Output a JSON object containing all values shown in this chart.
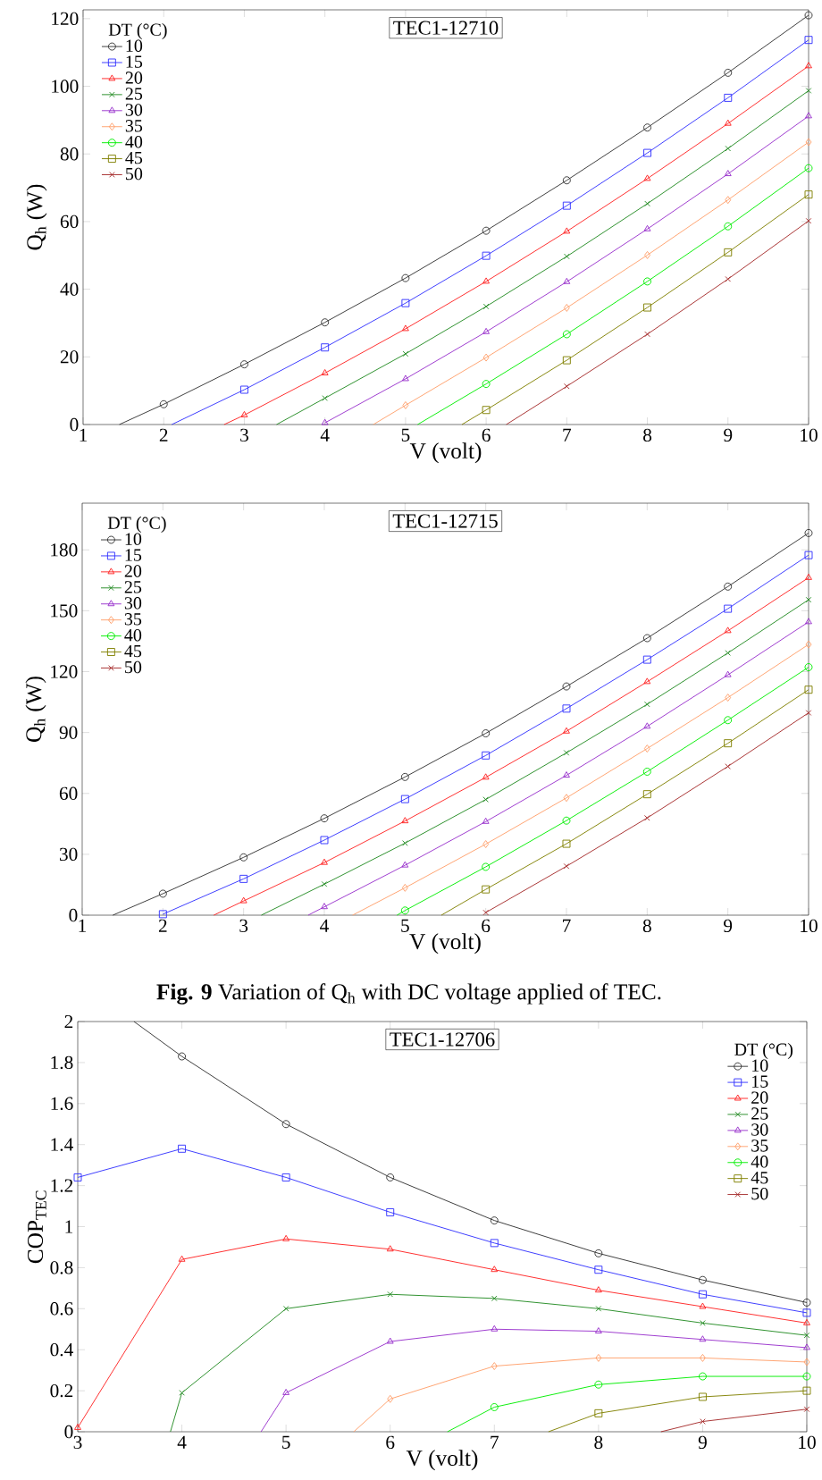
{
  "chart_data": [
    {
      "type": "line",
      "title": "TEC1-12710",
      "xlabel": "V (volt)",
      "ylabel": "Q$_{h}$ (W)",
      "legend_title": "DT (°C)",
      "legend": "top left",
      "xlim": [
        1,
        10
      ],
      "ylim": [
        0,
        122.6
      ],
      "xticks": [
        1,
        2,
        3,
        4,
        5,
        6,
        7,
        8,
        9,
        10
      ],
      "yticks": [
        0,
        20,
        40,
        60,
        80,
        100,
        120
      ],
      "line_style": "solid",
      "series": [
        {
          "name": "10",
          "color": "#333333",
          "marker": "circle",
          "x": [
            1.45,
            2,
            3,
            4,
            5,
            6,
            7,
            8,
            9,
            10
          ],
          "values": [
            0,
            6,
            17.8,
            30.2,
            43.3,
            57.3,
            72.2,
            87.8,
            104,
            121
          ]
        },
        {
          "name": "15",
          "color": "#3333ff",
          "marker": "square",
          "x": [
            2.1,
            3,
            4,
            5,
            6,
            7,
            8,
            9,
            10
          ],
          "values": [
            0,
            10.3,
            22.8,
            35.9,
            49.9,
            64.7,
            80.3,
            96.6,
            113.7
          ]
        },
        {
          "name": "20",
          "color": "#ff2222",
          "marker": "triangle",
          "x": [
            2.75,
            3,
            4,
            5,
            6,
            7,
            8,
            9,
            10
          ],
          "values": [
            0,
            2.8,
            15.2,
            28.3,
            42.3,
            57.1,
            72.7,
            89,
            106
          ]
        },
        {
          "name": "25",
          "color": "#228b22",
          "marker": "cross",
          "x": [
            3.4,
            4,
            5,
            6,
            7,
            8,
            9,
            10
          ],
          "values": [
            0,
            7.8,
            20.9,
            34.9,
            49.7,
            65.3,
            81.6,
            98.7
          ]
        },
        {
          "name": "30",
          "color": "#9932cc",
          "marker": "triangle",
          "x": [
            4,
            5,
            6,
            7,
            8,
            9,
            10
          ],
          "values": [
            0.5,
            13.5,
            27.4,
            42.2,
            57.8,
            74.1,
            91.2
          ]
        },
        {
          "name": "35",
          "color": "#ff9f6a",
          "marker": "diamond",
          "x": [
            4.6,
            5,
            6,
            7,
            8,
            9,
            10
          ],
          "values": [
            0,
            5.7,
            19.8,
            34.5,
            50.1,
            66.4,
            83.5
          ]
        },
        {
          "name": "40",
          "color": "#00ee00",
          "marker": "circle",
          "x": [
            5.15,
            6,
            7,
            8,
            9,
            10
          ],
          "values": [
            0,
            12,
            26.7,
            42.3,
            58.6,
            75.8
          ]
        },
        {
          "name": "45",
          "color": "#808000",
          "marker": "square",
          "x": [
            5.7,
            6,
            7,
            8,
            9,
            10
          ],
          "values": [
            0,
            4.3,
            19,
            34.6,
            50.9,
            68
          ]
        },
        {
          "name": "50",
          "color": "#a52a2a",
          "marker": "cross",
          "x": [
            6.25,
            7,
            8,
            9,
            10
          ],
          "values": [
            0,
            11.3,
            26.7,
            43,
            60.2
          ]
        }
      ]
    },
    {
      "type": "line",
      "title": "TEC1-12715",
      "xlabel": "V (volt)",
      "ylabel": "Q$_{h}$ (W)",
      "legend_title": "DT (°C)",
      "legend": "top left",
      "xlim": [
        1,
        10
      ],
      "ylim": [
        0,
        203
      ],
      "xticks": [
        1,
        2,
        3,
        4,
        5,
        6,
        7,
        8,
        9,
        10
      ],
      "yticks": [
        0,
        30,
        60,
        90,
        120,
        150,
        180
      ],
      "line_style": "solid",
      "annotations": [
        "**Fig. 9** Variation of Q$_{h}$ with DC voltage applied of TEC."
      ],
      "series": [
        {
          "name": "10",
          "color": "#333333",
          "marker": "circle",
          "x": [
            1.38,
            2,
            3,
            4,
            5,
            6,
            7,
            8,
            9,
            10
          ],
          "values": [
            0,
            10.6,
            28.5,
            47.7,
            68.1,
            89.6,
            112.7,
            136.5,
            161.9,
            188.3
          ]
        },
        {
          "name": "15",
          "color": "#3333ff",
          "marker": "square",
          "x": [
            2,
            3,
            4,
            5,
            6,
            7,
            8,
            9,
            10
          ],
          "values": [
            0.5,
            17.9,
            37,
            57.2,
            78.7,
            101.8,
            125.9,
            151,
            177.4
          ]
        },
        {
          "name": "20",
          "color": "#ff2222",
          "marker": "triangle",
          "x": [
            2.63,
            3,
            4,
            5,
            6,
            7,
            8,
            9,
            10
          ],
          "values": [
            0,
            7,
            25.9,
            46.4,
            67.9,
            90.6,
            115,
            140.1,
            166.3
          ]
        },
        {
          "name": "25",
          "color": "#228b22",
          "marker": "cross",
          "x": [
            3.22,
            4,
            5,
            6,
            7,
            8,
            9,
            10
          ],
          "values": [
            0,
            15.3,
            35.5,
            57,
            80,
            103.9,
            129.2,
            155.4
          ]
        },
        {
          "name": "30",
          "color": "#9932cc",
          "marker": "triangle",
          "x": [
            3.8,
            4,
            5,
            6,
            7,
            8,
            9,
            10
          ],
          "values": [
            0,
            4.1,
            24.6,
            46.1,
            68.9,
            93,
            118.4,
            144.5
          ]
        },
        {
          "name": "35",
          "color": "#ff9f6a",
          "marker": "diamond",
          "x": [
            4.35,
            5,
            6,
            7,
            8,
            9,
            10
          ],
          "values": [
            0,
            13.5,
            35,
            57.8,
            82.1,
            107.2,
            133.4
          ]
        },
        {
          "name": "40",
          "color": "#00ee00",
          "marker": "circle",
          "x": [
            4.9,
            5,
            6,
            7,
            8,
            9,
            10
          ],
          "values": [
            0,
            2.3,
            23.8,
            46.6,
            70.7,
            96.1,
            122.2
          ]
        },
        {
          "name": "45",
          "color": "#808000",
          "marker": "square",
          "x": [
            5.45,
            6,
            7,
            8,
            9,
            10
          ],
          "values": [
            0,
            12.7,
            35.2,
            59.6,
            84.7,
            111.1
          ]
        },
        {
          "name": "50",
          "color": "#a52a2a",
          "marker": "cross",
          "x": [
            6,
            7,
            8,
            9,
            10
          ],
          "values": [
            1.3,
            24.1,
            47.9,
            73.3,
            99.7
          ]
        }
      ]
    },
    {
      "type": "line",
      "title": "TEC1-12706",
      "xlabel": "V (volt)",
      "ylabel": "COP$_{TEC}$",
      "legend_title": "DT (°C)",
      "legend": "top right",
      "xlim": [
        3,
        10
      ],
      "ylim": [
        0,
        2
      ],
      "xticks": [
        3,
        4,
        5,
        6,
        7,
        8,
        9,
        10
      ],
      "yticks": [
        0,
        0.2,
        0.4,
        0.6,
        0.8,
        1,
        1.2,
        1.4,
        1.6,
        1.8,
        2
      ],
      "line_style": "solid",
      "series": [
        {
          "name": "10",
          "color": "#333333",
          "marker": "circle",
          "x": [
            3.54,
            4,
            5,
            6,
            7,
            8,
            9,
            10
          ],
          "values": [
            2,
            1.83,
            1.5,
            1.24,
            1.03,
            0.87,
            0.74,
            0.63
          ]
        },
        {
          "name": "15",
          "color": "#3333ff",
          "marker": "square",
          "x": [
            3,
            4,
            5,
            6,
            7,
            8,
            9,
            10
          ],
          "values": [
            1.24,
            1.38,
            1.24,
            1.07,
            0.92,
            0.79,
            0.67,
            0.58
          ]
        },
        {
          "name": "20",
          "color": "#ff2222",
          "marker": "triangle",
          "x": [
            3,
            4,
            5,
            6,
            7,
            8,
            9,
            10
          ],
          "values": [
            0.02,
            0.84,
            0.94,
            0.89,
            0.79,
            0.69,
            0.61,
            0.53
          ]
        },
        {
          "name": "25",
          "color": "#228b22",
          "marker": "cross",
          "x": [
            3.89,
            4,
            5,
            6,
            7,
            8,
            9,
            10
          ],
          "values": [
            0,
            0.19,
            0.6,
            0.67,
            0.65,
            0.6,
            0.53,
            0.47
          ]
        },
        {
          "name": "30",
          "color": "#9932cc",
          "marker": "triangle",
          "x": [
            4.76,
            5,
            6,
            7,
            8,
            9,
            10
          ],
          "values": [
            0,
            0.19,
            0.44,
            0.5,
            0.49,
            0.45,
            0.41
          ]
        },
        {
          "name": "35",
          "color": "#ff9f6a",
          "marker": "diamond",
          "x": [
            5.65,
            6,
            7,
            8,
            9,
            10
          ],
          "values": [
            0,
            0.16,
            0.32,
            0.36,
            0.36,
            0.34
          ]
        },
        {
          "name": "40",
          "color": "#00ee00",
          "marker": "circle",
          "x": [
            6.55,
            7,
            8,
            9,
            10
          ],
          "values": [
            0,
            0.12,
            0.23,
            0.27,
            0.27
          ]
        },
        {
          "name": "45",
          "color": "#808000",
          "marker": "square",
          "x": [
            7.52,
            8,
            9,
            10
          ],
          "values": [
            0,
            0.09,
            0.17,
            0.2
          ]
        },
        {
          "name": "50",
          "color": "#a52a2a",
          "marker": "cross",
          "x": [
            8.6,
            9,
            10
          ],
          "values": [
            0,
            0.05,
            0.11
          ]
        }
      ]
    }
  ]
}
